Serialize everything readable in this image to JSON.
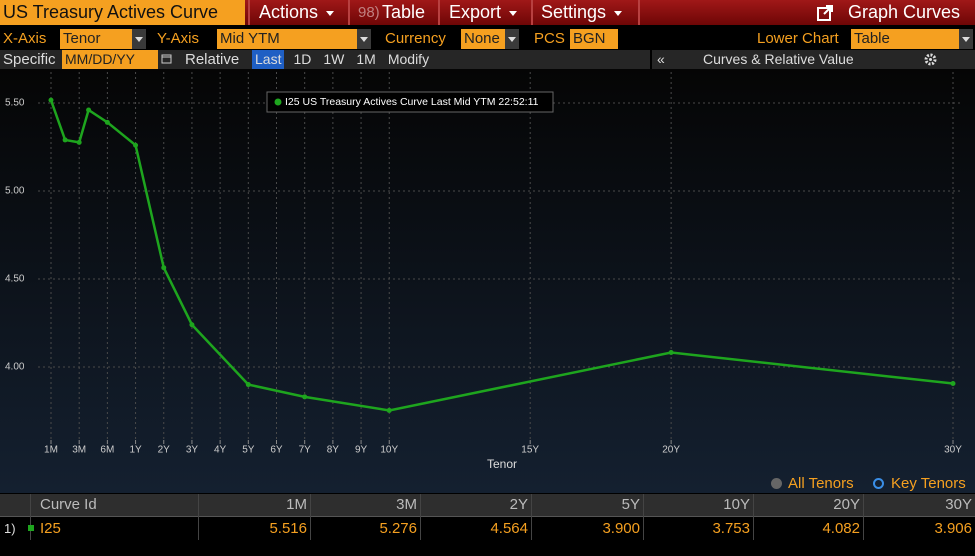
{
  "toolbar": {
    "title": "US Treasury Actives Curve",
    "actions": "Actions",
    "table_number": "98)",
    "table": "Table",
    "export": "Export",
    "settings": "Settings",
    "graph_curves": "Graph Curves"
  },
  "options": {
    "x_axis_label": "X-Axis",
    "x_axis_value": "Tenor",
    "y_axis_label": "Y-Axis",
    "y_axis_value": "Mid YTM",
    "currency_label": "Currency",
    "currency_value": "None",
    "pcs_label": "PCS",
    "pcs_value": "BGN",
    "lower_chart_label": "Lower Chart",
    "lower_chart_value": "Table",
    "specific_label": "Specific",
    "date_placeholder": "MM/DD/YY",
    "relative_label": "Relative",
    "relative_buttons": [
      "Last",
      "1D",
      "1W",
      "1M",
      "Modify"
    ],
    "collapse": "«",
    "panel_title": "Curves & Relative Value"
  },
  "chart_data": {
    "type": "line",
    "xlabel": "Tenor",
    "grid": true,
    "x": [
      0.0833,
      0.1667,
      0.25,
      0.3333,
      0.5,
      1,
      2,
      3,
      5,
      7,
      10,
      20,
      30
    ],
    "series": [
      {
        "name": "I25 US Treasury Actives Curve Last Mid YTM 22:52:11",
        "color": "#1ea51e",
        "values": [
          5.516,
          5.29,
          5.276,
          5.46,
          5.39,
          5.26,
          4.564,
          4.24,
          3.9,
          3.83,
          3.753,
          4.082,
          3.906
        ]
      }
    ],
    "xlim": [
      0.0833,
      30
    ],
    "xticks": [
      {
        "value": 0.0833,
        "label": "1M"
      },
      {
        "value": 0.25,
        "label": "3M"
      },
      {
        "value": 0.5,
        "label": "6M"
      },
      {
        "value": 1,
        "label": "1Y"
      },
      {
        "value": 2,
        "label": "2Y"
      },
      {
        "value": 3,
        "label": "3Y"
      },
      {
        "value": 4,
        "label": "4Y"
      },
      {
        "value": 5,
        "label": "5Y"
      },
      {
        "value": 6,
        "label": "6Y"
      },
      {
        "value": 7,
        "label": "7Y"
      },
      {
        "value": 8,
        "label": "8Y"
      },
      {
        "value": 9,
        "label": "9Y"
      },
      {
        "value": 10,
        "label": "10Y"
      },
      {
        "value": 15,
        "label": "15Y"
      },
      {
        "value": 20,
        "label": "20Y"
      },
      {
        "value": 30,
        "label": "30Y"
      }
    ],
    "ylim": [
      3.585,
      5.676
    ],
    "yticks": [
      {
        "value": 4,
        "label": "4.00"
      },
      {
        "value": 4.5,
        "label": "4.50"
      },
      {
        "value": 5,
        "label": "5.00"
      },
      {
        "value": 5.5,
        "label": "5.50"
      }
    ]
  },
  "tenor_filter": {
    "all": "All Tenors",
    "key": "Key Tenors"
  },
  "table": {
    "columns": [
      "Curve Id",
      "1M",
      "3M",
      "2Y",
      "5Y",
      "10Y",
      "20Y",
      "30Y"
    ],
    "rows": [
      {
        "index": "1)",
        "id": "I25",
        "values": [
          "5.516",
          "5.276",
          "4.564",
          "3.900",
          "3.753",
          "4.082",
          "3.906"
        ]
      }
    ]
  }
}
